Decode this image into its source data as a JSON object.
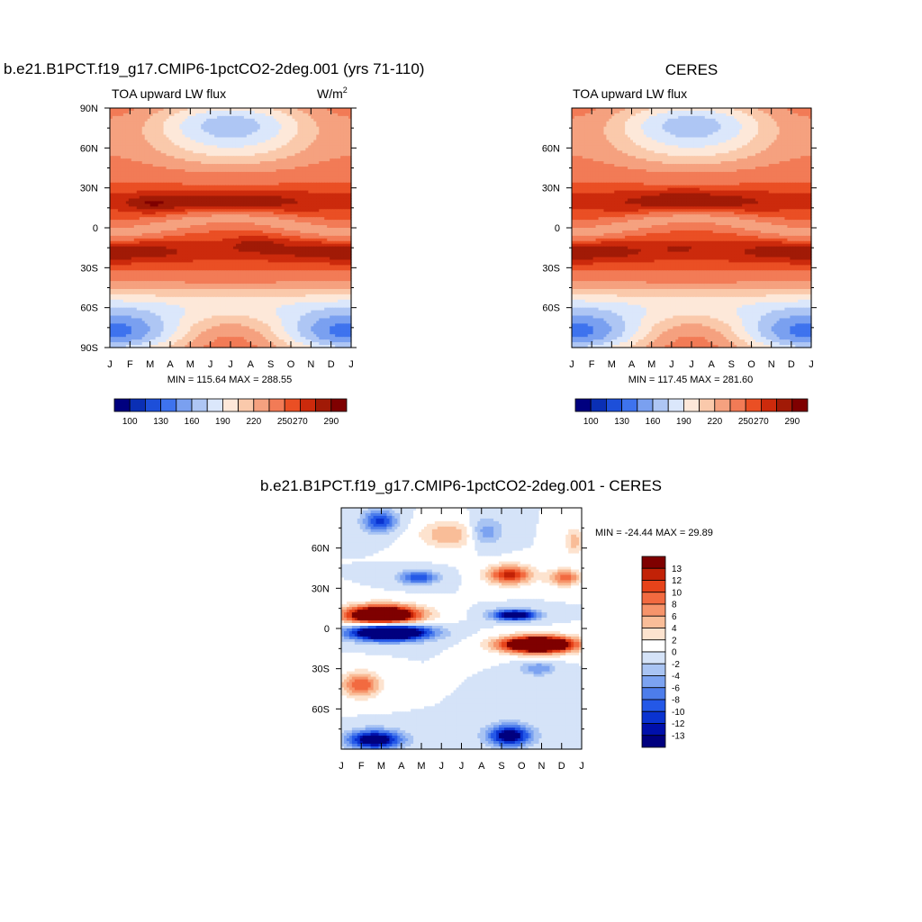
{
  "chart_data": [
    {
      "type": "heatmap",
      "title": "b.e21.B1PCT.f19_g17.CMIP6-1pctCO2-2deg.001 (yrs 71-110)",
      "subtitle": "TOA upward LW flux",
      "units": {
        "base": "W/m",
        "exp": "2"
      },
      "stats": "MIN = 115.64 MAX = 288.55",
      "x_ticks": [
        "J",
        "F",
        "M",
        "A",
        "M",
        "J",
        "J",
        "A",
        "S",
        "O",
        "N",
        "D",
        "J"
      ],
      "y_ticks": [
        "90N",
        "60N",
        "30N",
        "0",
        "30S",
        "60S",
        "90S"
      ],
      "colorbar_labels": [
        "100",
        "130",
        "160",
        "190",
        "220",
        "250",
        "270",
        "290"
      ],
      "grid": false
    },
    {
      "type": "heatmap",
      "title": "CERES",
      "subtitle": "TOA upward LW flux",
      "stats": "MIN = 117.45 MAX = 281.60",
      "x_ticks": [
        "J",
        "F",
        "M",
        "A",
        "M",
        "J",
        "J",
        "A",
        "S",
        "O",
        "N",
        "D",
        "J"
      ],
      "y_ticks": [
        "60N",
        "30N",
        "0",
        "30S",
        "60S"
      ],
      "colorbar_labels": [
        "100",
        "130",
        "160",
        "190",
        "220",
        "250",
        "270",
        "290"
      ],
      "grid": false
    },
    {
      "type": "heatmap",
      "title": "b.e21.B1PCT.f19_g17.CMIP6-1pctCO2-2deg.001 - CERES",
      "stats": "MIN = -24.44 MAX =  29.89",
      "x_ticks": [
        "J",
        "F",
        "M",
        "A",
        "M",
        "J",
        "J",
        "A",
        "S",
        "O",
        "N",
        "D",
        "J"
      ],
      "y_ticks": [
        "60N",
        "30N",
        "0",
        "30S",
        "60S"
      ],
      "colorbar_labels": [
        "13",
        "12",
        "10",
        "8",
        "6",
        "4",
        "2",
        "0",
        "-2",
        "-4",
        "-6",
        "-8",
        "-10",
        "-12",
        "-13"
      ],
      "grid": false
    }
  ],
  "colors": {
    "abs_scale": [
      "#00007f",
      "#0a2fb4",
      "#1d4fd9",
      "#3e73ee",
      "#7aa0f0",
      "#aec6f4",
      "#dbe7fb",
      "#fde8d9",
      "#fac9ab",
      "#f5a17f",
      "#f27b56",
      "#ea4f24",
      "#cc2a0c",
      "#a11a06",
      "#7f0000"
    ],
    "diff_scale": [
      "#00007f",
      "#0010ab",
      "#0a33d0",
      "#2458e7",
      "#4d7deb",
      "#7ca3f1",
      "#a9c4f3",
      "#d5e3f8",
      "#ffffff",
      "#fde3cf",
      "#f9bd98",
      "#f6946b",
      "#f26a40",
      "#e6431a",
      "#c22207",
      "#7f0000"
    ]
  }
}
